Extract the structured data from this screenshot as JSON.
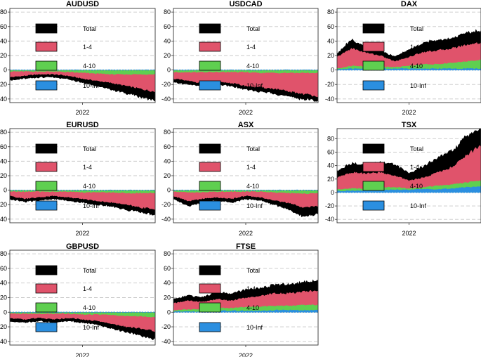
{
  "colors": {
    "total": "#000000",
    "band_1_4": "#e0536b",
    "band_4_10": "#5fcf50",
    "band_10_inf": "#2b8fe0",
    "grid": "#c8c8c8",
    "axis": "#333333",
    "text": "#000000"
  },
  "legend": [
    {
      "label": "Total",
      "color_key": "total"
    },
    {
      "label": "1-4",
      "color_key": "band_1_4"
    },
    {
      "label": "4-10",
      "color_key": "band_4_10"
    },
    {
      "label": "10-Inf",
      "color_key": "band_10_inf"
    }
  ],
  "chart_data": [
    {
      "type": "area",
      "title": "AUDUSD",
      "xlabel": "",
      "xticks": [
        "2022"
      ],
      "ylim": [
        -45,
        85
      ],
      "yticks": [
        -40,
        -20,
        0,
        20,
        40,
        60,
        80
      ],
      "x": [
        0,
        0.1,
        0.2,
        0.3,
        0.4,
        0.5,
        0.6,
        0.7,
        0.8,
        0.9,
        1.0
      ],
      "series": [
        {
          "name": "Total",
          "values": [
            -12,
            -10,
            -8,
            -8,
            -10,
            -15,
            -20,
            -25,
            -30,
            -35,
            -40
          ],
          "range": 3
        },
        {
          "name": "1-4",
          "values": [
            -10,
            -8,
            -6,
            -6,
            -8,
            -12,
            -15,
            -18,
            -22,
            -26,
            -30
          ]
        },
        {
          "name": "4-10",
          "values": [
            -2,
            -2,
            -2,
            -2,
            -3,
            -4,
            -5,
            -6,
            -6,
            -6,
            -6
          ]
        },
        {
          "name": "10-Inf",
          "values": [
            0,
            0,
            0,
            0,
            0,
            0,
            0,
            0,
            0,
            0,
            0
          ]
        }
      ]
    },
    {
      "type": "area",
      "title": "USDCAD",
      "xlabel": "",
      "xticks": [
        "2022"
      ],
      "ylim": [
        -45,
        85
      ],
      "yticks": [
        -40,
        -20,
        0,
        20,
        40,
        60,
        80
      ],
      "x": [
        0,
        0.1,
        0.2,
        0.3,
        0.4,
        0.5,
        0.6,
        0.7,
        0.8,
        0.9,
        1.0
      ],
      "series": [
        {
          "name": "Total",
          "values": [
            -15,
            -18,
            -20,
            -18,
            -20,
            -25,
            -28,
            -30,
            -35,
            -38,
            -40
          ],
          "range": 3
        },
        {
          "name": "1-4",
          "values": [
            -12,
            -15,
            -18,
            -16,
            -18,
            -22,
            -24,
            -26,
            -30,
            -33,
            -36
          ]
        },
        {
          "name": "4-10",
          "values": [
            -3,
            -3,
            -3,
            -3,
            -3,
            -3,
            -4,
            -4,
            -4,
            -4,
            -4
          ]
        },
        {
          "name": "10-Inf",
          "values": [
            0,
            0,
            0,
            0,
            0,
            0,
            0,
            0,
            0,
            0,
            0
          ]
        }
      ]
    },
    {
      "type": "area",
      "title": "DAX",
      "xlabel": "",
      "xticks": [
        "2022"
      ],
      "ylim": [
        -45,
        85
      ],
      "yticks": [
        -40,
        -20,
        0,
        20,
        40,
        60,
        80
      ],
      "x": [
        0,
        0.1,
        0.2,
        0.3,
        0.4,
        0.5,
        0.6,
        0.7,
        0.8,
        0.9,
        1.0
      ],
      "series": [
        {
          "name": "Total",
          "values": [
            20,
            40,
            28,
            25,
            15,
            25,
            35,
            38,
            42,
            48,
            52
          ],
          "range": 4
        },
        {
          "name": "1-4",
          "values": [
            18,
            30,
            24,
            20,
            12,
            18,
            25,
            27,
            30,
            35,
            38
          ]
        },
        {
          "name": "4-10",
          "values": [
            2,
            6,
            5,
            5,
            4,
            6,
            8,
            8,
            10,
            12,
            14
          ]
        },
        {
          "name": "10-Inf",
          "values": [
            1,
            2,
            2,
            2,
            2,
            2,
            2,
            2,
            2,
            2,
            2
          ]
        }
      ]
    },
    {
      "type": "area",
      "title": "EURUSD",
      "xlabel": "",
      "xticks": [
        "2022"
      ],
      "ylim": [
        -45,
        85
      ],
      "yticks": [
        -40,
        -20,
        0,
        20,
        40,
        60,
        80
      ],
      "x": [
        0,
        0.1,
        0.2,
        0.3,
        0.4,
        0.5,
        0.6,
        0.7,
        0.8,
        0.9,
        1.0
      ],
      "series": [
        {
          "name": "Total",
          "values": [
            -10,
            -14,
            -12,
            -10,
            -12,
            -15,
            -18,
            -20,
            -25,
            -28,
            -32
          ],
          "range": 3
        },
        {
          "name": "1-4",
          "values": [
            -8,
            -12,
            -10,
            -8,
            -10,
            -12,
            -15,
            -17,
            -20,
            -24,
            -26
          ]
        },
        {
          "name": "4-10",
          "values": [
            -2,
            -2,
            -2,
            -2,
            -2,
            -3,
            -3,
            -3,
            -4,
            -4,
            -4
          ]
        },
        {
          "name": "10-Inf",
          "values": [
            0,
            0,
            0,
            0,
            0,
            0,
            0,
            0,
            0,
            0,
            0
          ]
        }
      ]
    },
    {
      "type": "area",
      "title": "ASX",
      "xlabel": "",
      "xticks": [
        "2022"
      ],
      "ylim": [
        -45,
        85
      ],
      "yticks": [
        -40,
        -20,
        0,
        20,
        40,
        60,
        80
      ],
      "x": [
        0,
        0.1,
        0.2,
        0.3,
        0.4,
        0.5,
        0.6,
        0.7,
        0.8,
        0.9,
        1.0
      ],
      "series": [
        {
          "name": "Total",
          "values": [
            -10,
            -20,
            -15,
            -12,
            -15,
            -10,
            -12,
            -18,
            -25,
            -35,
            -30
          ],
          "range": 3
        },
        {
          "name": "1-4",
          "values": [
            -8,
            -15,
            -12,
            -10,
            -12,
            -8,
            -10,
            -14,
            -18,
            -24,
            -22
          ]
        },
        {
          "name": "4-10",
          "values": [
            -2,
            -3,
            -3,
            -2,
            -2,
            -2,
            -2,
            -3,
            -4,
            -5,
            -4
          ]
        },
        {
          "name": "10-Inf",
          "values": [
            0,
            0,
            0,
            0,
            0,
            0,
            0,
            0,
            0,
            0,
            0
          ]
        }
      ]
    },
    {
      "type": "area",
      "title": "TSX",
      "xlabel": "",
      "xticks": [
        "2022"
      ],
      "ylim": [
        -45,
        95
      ],
      "yticks": [
        -40,
        -20,
        0,
        20,
        40,
        60,
        80
      ],
      "x": [
        0,
        0.1,
        0.2,
        0.3,
        0.4,
        0.5,
        0.6,
        0.7,
        0.8,
        0.9,
        1.0
      ],
      "series": [
        {
          "name": "Total",
          "values": [
            28,
            40,
            38,
            42,
            38,
            25,
            35,
            48,
            58,
            80,
            92
          ],
          "range": 5
        },
        {
          "name": "1-4",
          "values": [
            22,
            30,
            28,
            30,
            25,
            18,
            22,
            30,
            38,
            55,
            70
          ]
        },
        {
          "name": "4-10",
          "values": [
            5,
            6,
            6,
            8,
            8,
            6,
            8,
            10,
            12,
            15,
            18
          ]
        },
        {
          "name": "10-Inf",
          "values": [
            2,
            3,
            3,
            4,
            4,
            4,
            5,
            5,
            6,
            8,
            9
          ]
        }
      ]
    },
    {
      "type": "area",
      "title": "GBPUSD",
      "xlabel": "",
      "xticks": [
        "2022"
      ],
      "ylim": [
        -45,
        85
      ],
      "yticks": [
        -40,
        -20,
        0,
        20,
        40,
        60,
        80
      ],
      "x": [
        0,
        0.1,
        0.2,
        0.3,
        0.4,
        0.5,
        0.6,
        0.7,
        0.8,
        0.9,
        1.0
      ],
      "series": [
        {
          "name": "Total",
          "values": [
            -10,
            -12,
            -10,
            -12,
            -10,
            -12,
            -15,
            -20,
            -25,
            -30,
            -35
          ],
          "range": 3
        },
        {
          "name": "1-4",
          "values": [
            -8,
            -10,
            -8,
            -10,
            -8,
            -10,
            -12,
            -16,
            -20,
            -22,
            -26
          ]
        },
        {
          "name": "4-10",
          "values": [
            -2,
            -2,
            -2,
            -2,
            -2,
            -3,
            -3,
            -4,
            -5,
            -6,
            -7
          ]
        },
        {
          "name": "10-Inf",
          "values": [
            0,
            0,
            0,
            0,
            0,
            0,
            0,
            0,
            0,
            0,
            0
          ]
        }
      ]
    },
    {
      "type": "area",
      "title": "FTSE",
      "xlabel": "",
      "xticks": [
        "2022"
      ],
      "ylim": [
        -45,
        85
      ],
      "yticks": [
        -40,
        -20,
        0,
        20,
        40,
        60,
        80
      ],
      "x": [
        0,
        0.1,
        0.2,
        0.3,
        0.4,
        0.5,
        0.6,
        0.7,
        0.8,
        0.9,
        1.0
      ],
      "series": [
        {
          "name": "Total",
          "values": [
            15,
            20,
            18,
            25,
            22,
            28,
            30,
            35,
            35,
            38,
            40
          ],
          "range": 4
        },
        {
          "name": "1-4",
          "values": [
            12,
            16,
            14,
            18,
            16,
            20,
            22,
            26,
            26,
            28,
            30
          ]
        },
        {
          "name": "4-10",
          "values": [
            3,
            4,
            4,
            6,
            6,
            7,
            8,
            9,
            9,
            10,
            10
          ]
        },
        {
          "name": "10-Inf",
          "values": [
            1,
            1,
            1,
            2,
            2,
            2,
            2,
            3,
            3,
            3,
            3
          ]
        }
      ]
    }
  ]
}
